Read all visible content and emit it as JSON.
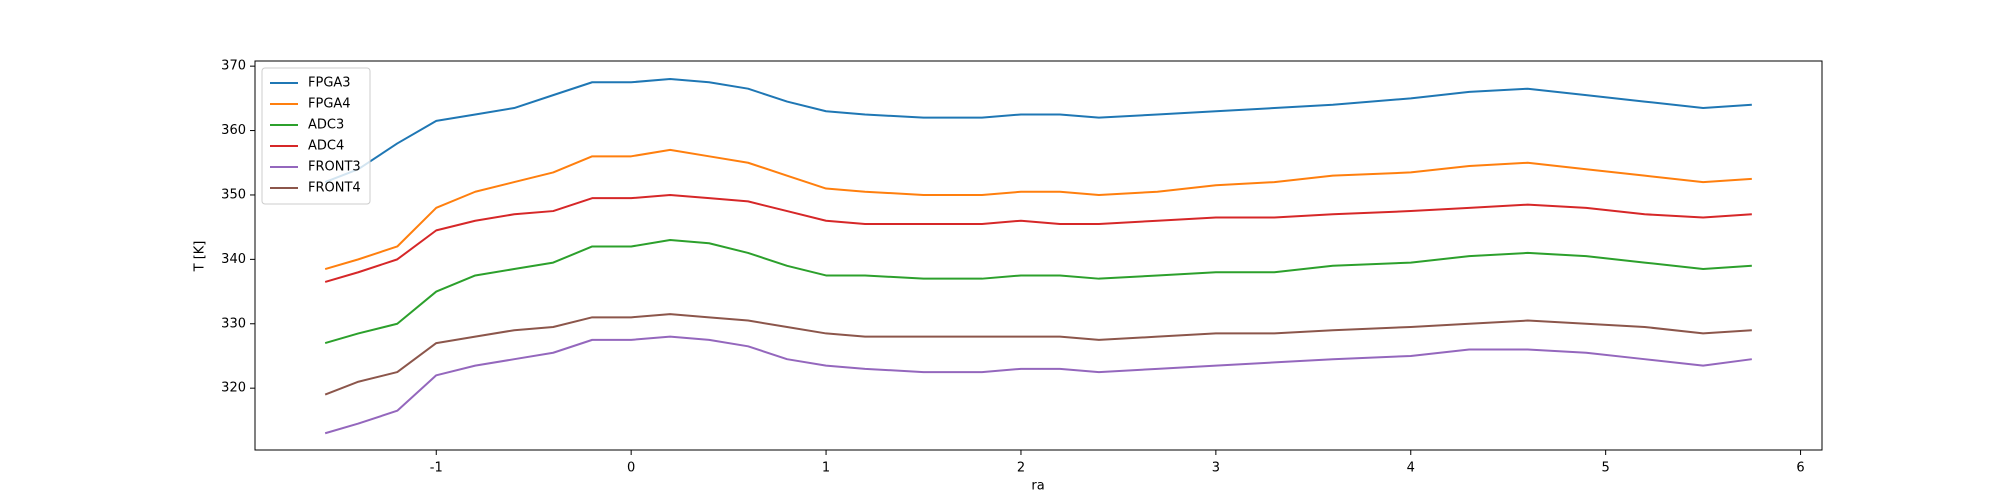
{
  "chart_data": {
    "type": "line",
    "xlabel": "ra",
    "ylabel": "T [K]",
    "x": [
      -1.57,
      -1.4,
      -1.2,
      -1.0,
      -0.8,
      -0.6,
      -0.4,
      -0.2,
      0,
      0.2,
      0.4,
      0.6,
      0.8,
      1.0,
      1.2,
      1.5,
      1.8,
      2.0,
      2.2,
      2.4,
      2.7,
      3.0,
      3.3,
      3.6,
      4.0,
      4.3,
      4.6,
      4.9,
      5.2,
      5.5,
      5.75
    ],
    "series": [
      {
        "name": "FPGA3",
        "color": "#1f77b4",
        "values": [
          352,
          354,
          358,
          361.5,
          362.5,
          363.5,
          365.5,
          367.5,
          367.5,
          368,
          367.5,
          366.5,
          364.5,
          363,
          362.5,
          362,
          362,
          362.5,
          362.5,
          362,
          362.5,
          363,
          363.5,
          364,
          365,
          366,
          366.5,
          365.5,
          364.5,
          363.5,
          364
        ]
      },
      {
        "name": "FPGA4",
        "color": "#ff7f0e",
        "values": [
          338.5,
          340,
          342,
          348,
          350.5,
          352,
          353.5,
          356,
          356,
          357,
          356,
          355,
          353,
          351,
          350.5,
          350,
          350,
          350.5,
          350.5,
          350,
          350.5,
          351.5,
          352,
          353,
          353.5,
          354.5,
          355,
          354,
          353,
          352,
          352.5
        ]
      },
      {
        "name": "ADC3",
        "color": "#2ca02c",
        "values": [
          327,
          328.5,
          330,
          335,
          337.5,
          338.5,
          339.5,
          342,
          342,
          343,
          342.5,
          341,
          339,
          337.5,
          337.5,
          337,
          337,
          337.5,
          337.5,
          337,
          337.5,
          338,
          338,
          339,
          339.5,
          340.5,
          341,
          340.5,
          339.5,
          338.5,
          339
        ]
      },
      {
        "name": "ADC4",
        "color": "#d62728",
        "values": [
          336.5,
          338,
          340,
          344.5,
          346,
          347,
          347.5,
          349.5,
          349.5,
          350,
          349.5,
          349,
          347.5,
          346,
          345.5,
          345.5,
          345.5,
          346,
          345.5,
          345.5,
          346,
          346.5,
          346.5,
          347,
          347.5,
          348,
          348.5,
          348,
          347,
          346.5,
          347
        ]
      },
      {
        "name": "FRONT3",
        "color": "#9467bd",
        "values": [
          313,
          314.5,
          316.5,
          322,
          323.5,
          324.5,
          325.5,
          327.5,
          327.5,
          328,
          327.5,
          326.5,
          324.5,
          323.5,
          323,
          322.5,
          322.5,
          323,
          323,
          322.5,
          323,
          323.5,
          324,
          324.5,
          325,
          326,
          326,
          325.5,
          324.5,
          323.5,
          324.5
        ]
      },
      {
        "name": "FRONT4",
        "color": "#8c564b",
        "values": [
          319,
          321,
          322.5,
          327,
          328,
          329,
          329.5,
          331,
          331,
          331.5,
          331,
          330.5,
          329.5,
          328.5,
          328,
          328,
          328,
          328,
          328,
          327.5,
          328,
          328.5,
          328.5,
          329,
          329.5,
          330,
          330.5,
          330,
          329.5,
          328.5,
          329
        ]
      }
    ],
    "xlim": [
      -1.93,
      6.11
    ],
    "xticks": [
      -1,
      0,
      1,
      2,
      3,
      4,
      5,
      6
    ],
    "ylim": [
      310.4,
      370.8
    ],
    "yticks": [
      320,
      330,
      340,
      350,
      360,
      370
    ],
    "legend": "upper left"
  }
}
